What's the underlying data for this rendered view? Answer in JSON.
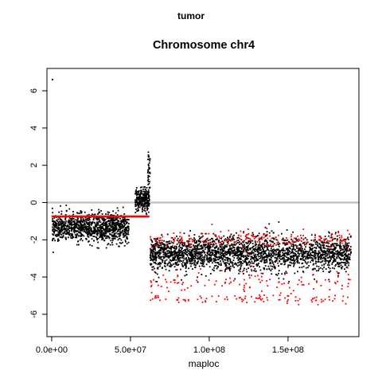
{
  "figure": {
    "suptitle": "tumor",
    "title": "Chromosome chr4",
    "xlabel": "maploc",
    "ylabel": ""
  },
  "chart_data": {
    "type": "scatter",
    "title": "Chromosome chr4",
    "xlabel": "maploc",
    "ylabel": "",
    "xlim": [
      -3000000,
      195000000
    ],
    "ylim": [
      -7.2,
      7.2
    ],
    "x_ticks": [
      0,
      50000000,
      100000000,
      150000000
    ],
    "x_tick_labels": [
      "0.0e+00",
      "5.0e+07",
      "1.0e+08",
      "1.5e+08"
    ],
    "y_ticks": [
      -6,
      -4,
      -2,
      0,
      2,
      4,
      6
    ],
    "y_tick_labels": [
      "-6",
      "-4",
      "-2",
      "0",
      "2",
      "4",
      "6"
    ],
    "grid": false,
    "reference_line": {
      "y": 0,
      "color": "#bebebe"
    },
    "series": [
      {
        "role": "probes",
        "color": "#000000",
        "marker": "point",
        "groups": [
          {
            "x_range": [
              400000,
              49000000
            ],
            "y_center": -1.35,
            "y_spread": 0.38,
            "n": 1100
          },
          {
            "x_range": [
              53000000,
              62000000
            ],
            "y_center": 0.15,
            "y_spread": 0.3,
            "n": 260
          },
          {
            "x_range": [
              61000000,
              62500000
            ],
            "y_center": 1.5,
            "y_spread": 0.6,
            "n": 40
          },
          {
            "x_range": [
              62500000,
              190000000
            ],
            "y_center": -2.75,
            "y_spread": 0.45,
            "n": 2400
          }
        ],
        "outliers": [
          {
            "x": 500000,
            "y": 6.6
          }
        ]
      },
      {
        "role": "hom/het markers",
        "color": "#ff0000",
        "marker": "point",
        "groups": [
          {
            "x_range": [
              62500000,
              190000000
            ],
            "y_center": -2.0,
            "y_spread": 0.25,
            "n": 220
          },
          {
            "x_range": [
              62500000,
              190000000
            ],
            "y_center": -4.3,
            "y_spread": 0.35,
            "n": 120
          },
          {
            "x_range": [
              62500000,
              190000000
            ],
            "y_center": -5.2,
            "y_spread": 0.12,
            "n": 90
          }
        ]
      }
    ],
    "segments": [
      {
        "x0": 0,
        "x1": 50000000,
        "y": -0.75,
        "color": "#ff0000"
      },
      {
        "x0": 50000000,
        "x1": 62000000,
        "y": -0.75,
        "color": "#ff0000"
      }
    ]
  }
}
